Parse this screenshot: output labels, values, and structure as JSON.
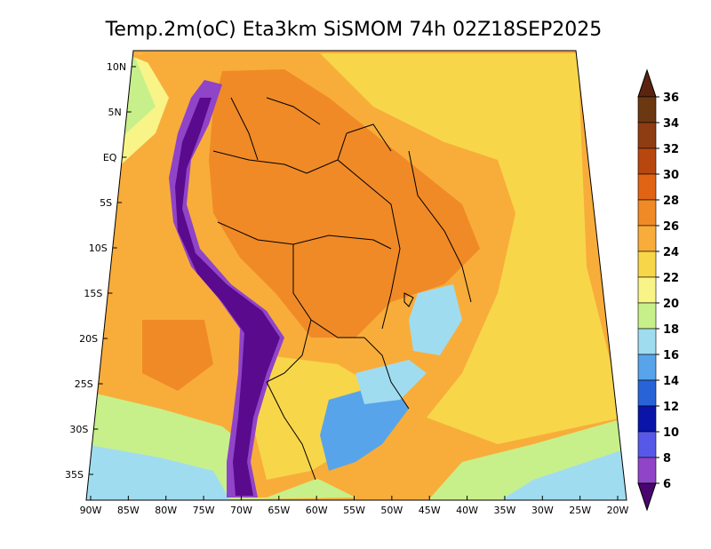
{
  "title": "Temp.2m(oC) Eta3km SiSMOM 74h 02Z18SEP2025",
  "lat_labels": [
    "10N",
    "5N",
    "EQ",
    "5S",
    "10S",
    "15S",
    "20S",
    "25S",
    "30S",
    "35S"
  ],
  "lon_labels": [
    "90W",
    "85W",
    "80W",
    "75W",
    "70W",
    "65W",
    "60W",
    "55W",
    "50W",
    "45W",
    "40W",
    "35W",
    "30W",
    "25W",
    "20W"
  ],
  "colorbar": {
    "labels": [
      "36",
      "34",
      "32",
      "30",
      "28",
      "26",
      "24",
      "22",
      "20",
      "18",
      "16",
      "14",
      "12",
      "10",
      "8",
      "6"
    ],
    "colors": [
      "#6b3812",
      "#8e3d12",
      "#b8470f",
      "#e06414",
      "#f08a26",
      "#f8ad3a",
      "#f8d64a",
      "#f8f488",
      "#c8f08a",
      "#a0dcf0",
      "#58a4ea",
      "#2864d8",
      "#0a14a8",
      "#5858e8",
      "#9044c8",
      "#5a0a8c"
    ],
    "top_arrow_color": "#5a2410",
    "bottom_arrow_color": "#4a0670"
  },
  "field_colors": {
    "ocean_warm": "#f8ad3a",
    "ocean_mild": "#f8d64a",
    "ocean_cool": "#f8f488",
    "ocean_cold": "#c8f08a",
    "ocean_very_cold": "#a0dcf0",
    "land_hot": "#f08a26",
    "andes": "#5a0a8c",
    "andes_edge": "#9044c8",
    "south_cold": "#58a4ea",
    "border": "#000000"
  }
}
